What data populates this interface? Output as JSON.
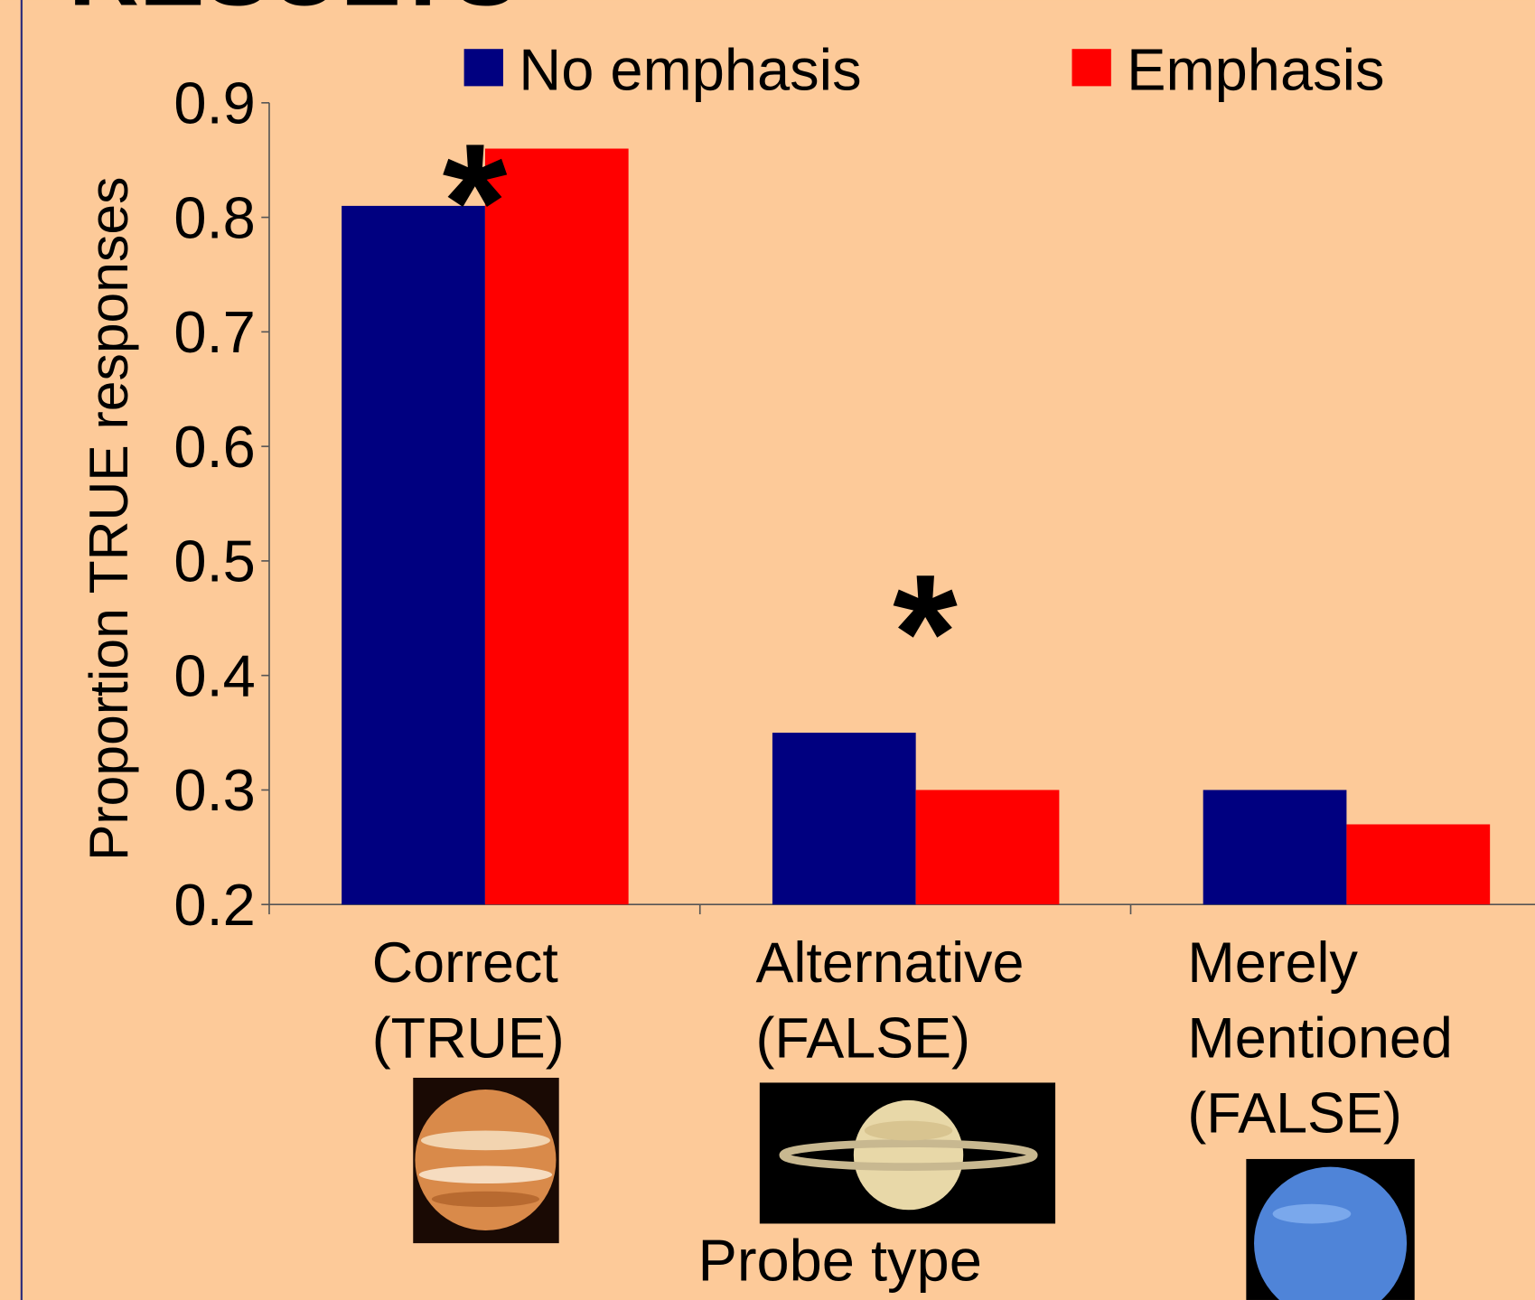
{
  "chart_data": {
    "type": "bar",
    "title": "RESULTS",
    "y_label": "Proportion TRUE responses",
    "x_label": "Probe type",
    "categories": [
      "Correct\n(TRUE)",
      "Alternative\n(FALSE)",
      "Merely\nMentioned\n(FALSE)"
    ],
    "series": [
      {
        "name": "No emphasis",
        "color": "#000080",
        "values": [
          0.81,
          0.35,
          0.3
        ]
      },
      {
        "name": "Emphasis",
        "color": "#ff0000",
        "values": [
          0.86,
          0.3,
          0.27
        ]
      }
    ],
    "annotations": [
      "*",
      "*"
    ],
    "ylim": [
      0.2,
      0.9
    ],
    "yticks": [
      0.2,
      0.3,
      0.4,
      0.5,
      0.6,
      0.7,
      0.8,
      0.9
    ],
    "legend": "top",
    "grid": false
  }
}
